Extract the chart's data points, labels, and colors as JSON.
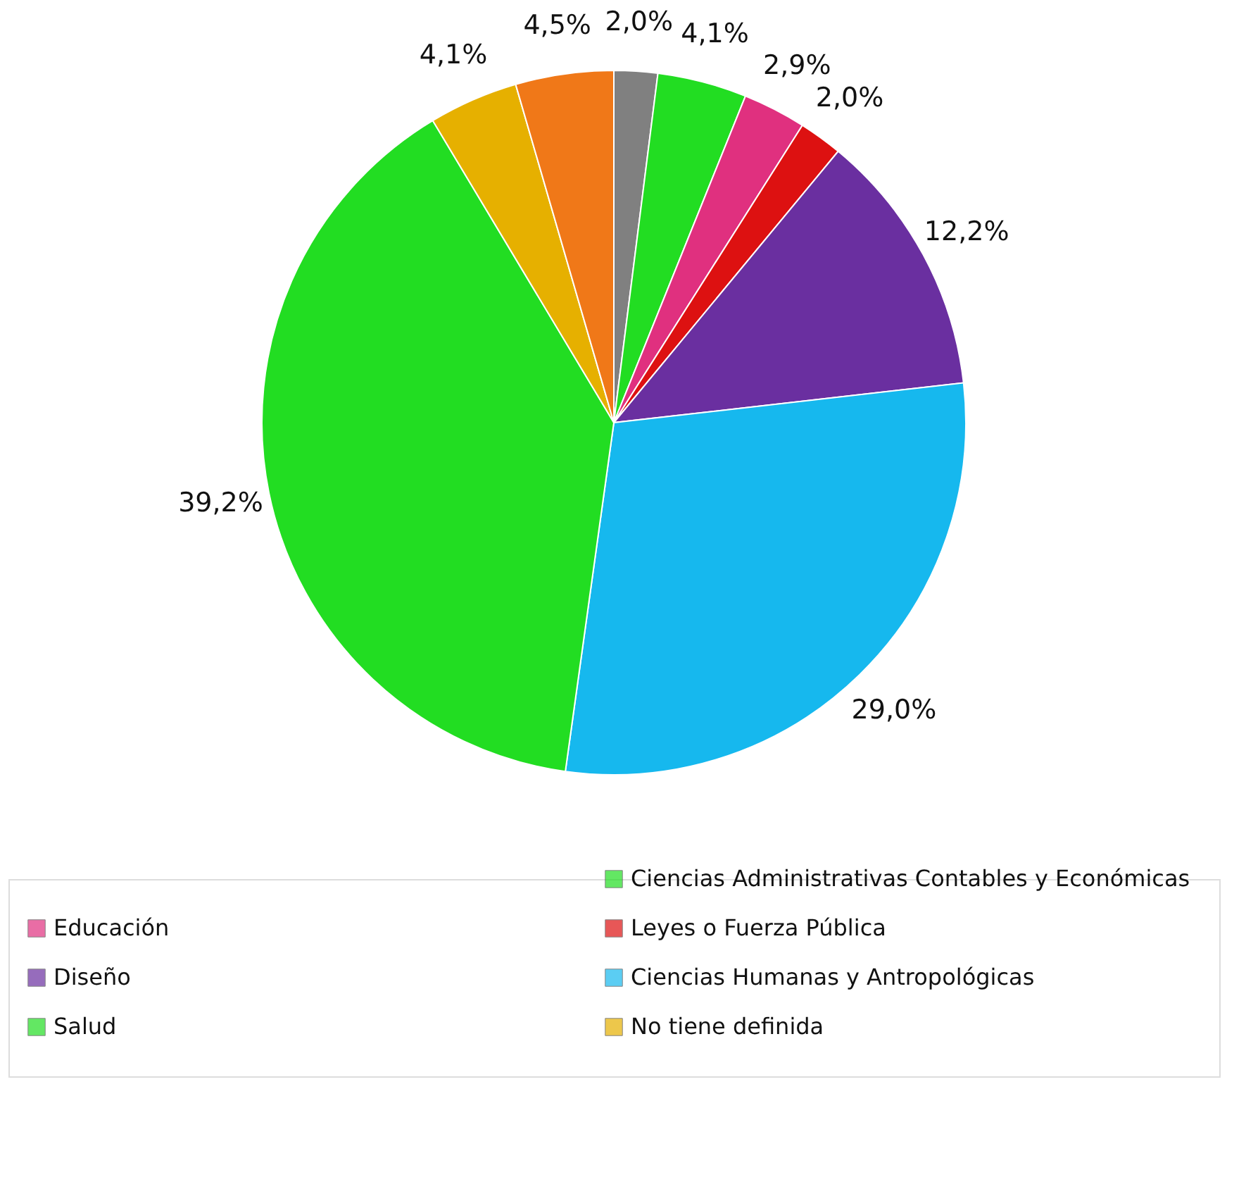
{
  "chart_data": {
    "type": "pie",
    "categories": [
      null,
      "Ciencias Administrativas Contables y Económicas",
      "Educación",
      "Leyes o Fuerza Pública",
      "Diseño",
      "Ciencias Humanas y Antropológicas",
      "Salud",
      "No tiene definida",
      null
    ],
    "values": [
      2.0,
      4.1,
      2.9,
      2.0,
      12.2,
      29.0,
      39.2,
      4.1,
      4.5
    ],
    "colors": [
      "#808080",
      "#22dd22",
      "#e0307f",
      "#dd1111",
      "#6a2fa0",
      "#16b8ee",
      "#22dd22",
      "#e6b000",
      "#f07818"
    ],
    "value_labels": [
      "2,0%",
      "4,1%",
      "2,9%",
      "2,0%",
      "12,2%",
      "29,0%",
      "39,2%",
      "4,1%",
      "4,5%"
    ],
    "legend": "bottom"
  }
}
